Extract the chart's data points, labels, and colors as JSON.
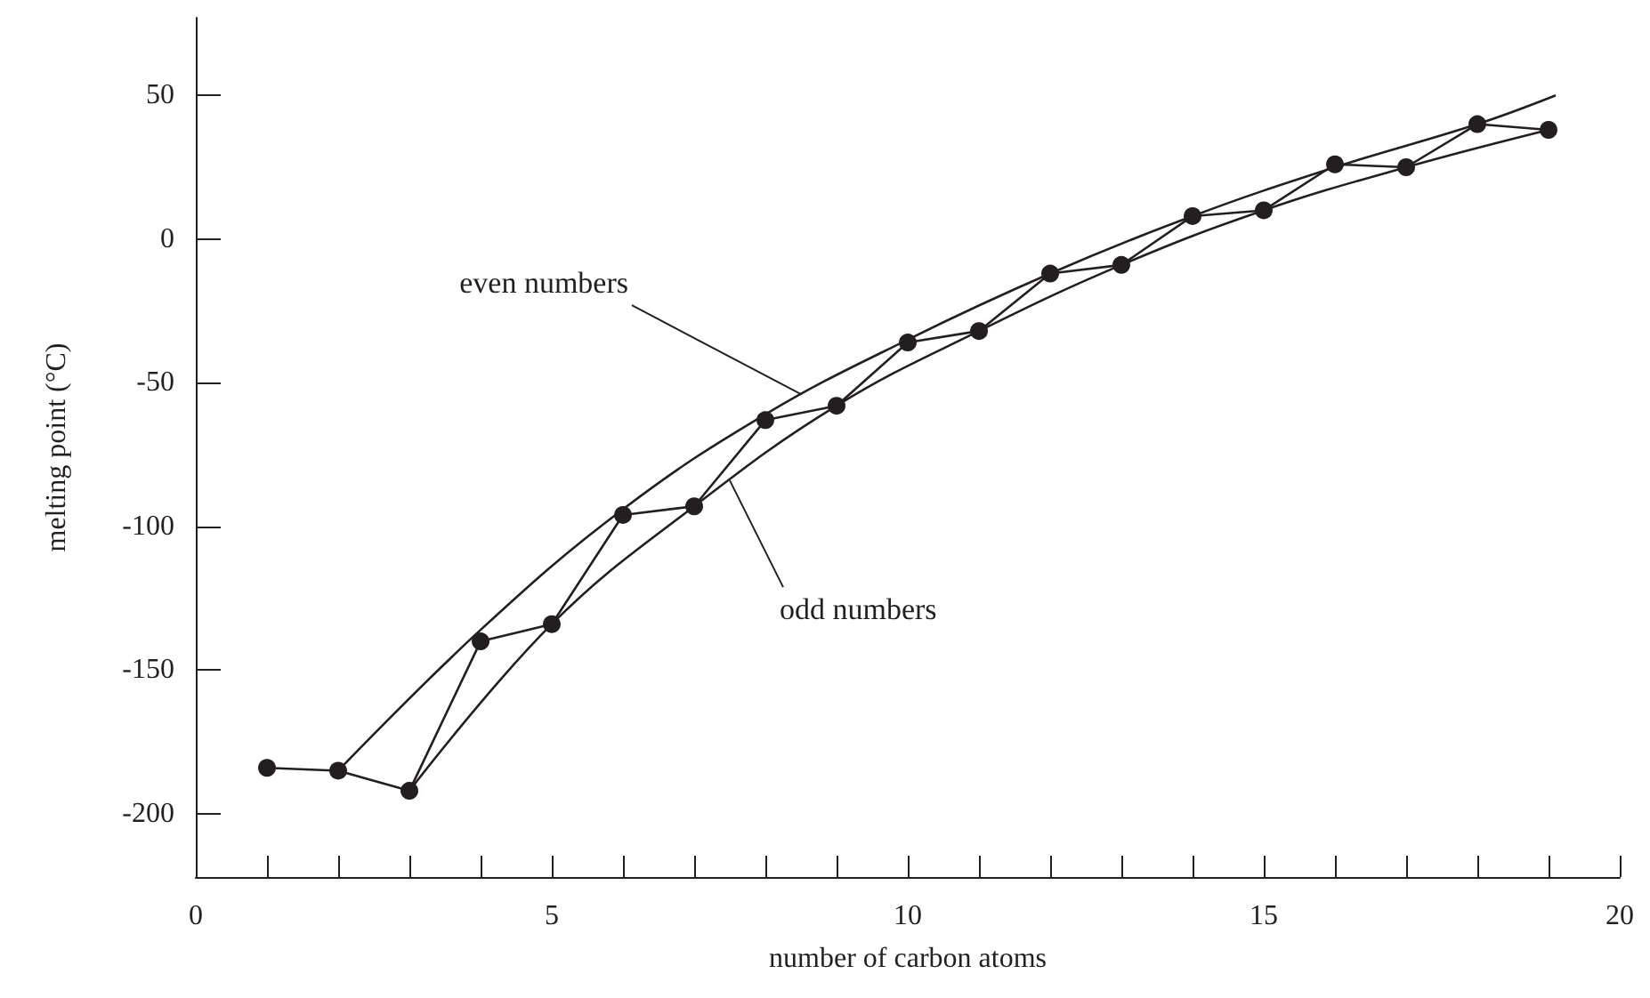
{
  "chart_data": {
    "type": "line",
    "xlabel": "number of carbon atoms",
    "ylabel": "melting point (°C)",
    "xlim": [
      0,
      20
    ],
    "ylim": [
      -222,
      77
    ],
    "xticks": [
      0,
      {
        "value": 1,
        "label": null
      },
      {
        "value": 2,
        "label": null
      },
      {
        "value": 3,
        "label": null
      },
      {
        "value": 4,
        "label": null
      },
      5,
      {
        "value": 6,
        "label": null
      },
      {
        "value": 7,
        "label": null
      },
      {
        "value": 8,
        "label": null
      },
      {
        "value": 9,
        "label": null
      },
      10,
      {
        "value": 11,
        "label": null
      },
      {
        "value": 12,
        "label": null
      },
      {
        "value": 13,
        "label": null
      },
      {
        "value": 14,
        "label": null
      },
      15,
      {
        "value": 16,
        "label": null
      },
      {
        "value": 17,
        "label": null
      },
      {
        "value": 18,
        "label": null
      },
      {
        "value": 19,
        "label": null
      },
      20
    ],
    "yticks": [
      -200,
      -150,
      -100,
      -50,
      0,
      50
    ],
    "grid": false,
    "series": [
      {
        "color": "#231f20",
        "marker": "circle",
        "x": [
          1,
          2,
          3,
          4,
          5,
          6,
          7,
          8,
          9,
          10,
          11,
          12,
          13,
          14,
          15,
          16,
          17,
          18,
          19
        ],
        "values": [
          -184,
          -185,
          -192,
          -140,
          -134,
          -96,
          -93,
          -63,
          -58,
          -36,
          -32,
          -12,
          -9,
          8,
          10,
          26,
          25,
          40,
          38
        ]
      },
      {
        "color": "#231f20",
        "marker": "none",
        "x": [
          2,
          4,
          6,
          8,
          10,
          12,
          14,
          16,
          18,
          19.1
        ],
        "values": [
          -185,
          -136,
          -94,
          -61,
          -35,
          -12,
          8,
          25,
          40,
          50
        ]
      },
      {
        "color": "#231f20",
        "marker": "none",
        "x": [
          3,
          5,
          7,
          9,
          11,
          13,
          15,
          17,
          19
        ],
        "values": [
          -192,
          -134,
          -93,
          -58,
          -32,
          -9,
          10,
          25,
          38
        ]
      }
    ],
    "annotations": [
      {
        "text": "even numbers",
        "x": 8.5,
        "y": -54
      },
      {
        "text": "odd numbers",
        "x": 7.5,
        "y": -84
      }
    ]
  }
}
